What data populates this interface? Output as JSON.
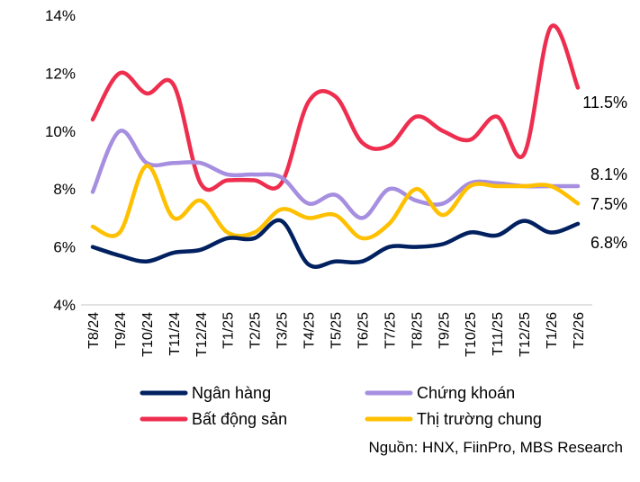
{
  "chart_data": {
    "type": "line",
    "categories": [
      "T8/24",
      "T9/24",
      "T10/24",
      "T11/24",
      "T12/24",
      "T1/25",
      "T2/25",
      "T3/25",
      "T4/25",
      "T5/25",
      "T6/25",
      "T7/25",
      "T8/25",
      "T9/25",
      "T10/25",
      "T11/25",
      "T12/25",
      "T1/26",
      "T2/26"
    ],
    "ylim": [
      4,
      14
    ],
    "yticks": [
      4,
      6,
      8,
      10,
      12,
      14
    ],
    "ytick_format": "%",
    "grid": false,
    "legend_placement": "bottom",
    "series": [
      {
        "name": "Ngân hàng",
        "color": "#002060",
        "end_label": "6.8%",
        "values": [
          6.0,
          5.7,
          5.5,
          5.8,
          5.9,
          6.3,
          6.3,
          6.9,
          5.4,
          5.5,
          5.5,
          6.0,
          6.0,
          6.1,
          6.5,
          6.4,
          6.9,
          6.5,
          6.8
        ]
      },
      {
        "name": "Chứng khoán",
        "color": "#A68EE0",
        "end_label": "8.1%",
        "values": [
          7.9,
          10.0,
          8.9,
          8.9,
          8.9,
          8.5,
          8.5,
          8.4,
          7.5,
          7.8,
          7.0,
          8.0,
          7.6,
          7.5,
          8.2,
          8.2,
          8.1,
          8.1,
          8.1
        ]
      },
      {
        "name": "Bất động sản",
        "color": "#EE2E4F",
        "end_label": "11.5%",
        "values": [
          10.4,
          12.0,
          11.3,
          11.6,
          8.2,
          8.3,
          8.3,
          8.2,
          11.0,
          11.2,
          9.6,
          9.5,
          10.5,
          10.0,
          9.7,
          10.5,
          9.2,
          13.6,
          11.5
        ]
      },
      {
        "name": "Thị trường chung",
        "color": "#FFC000",
        "end_label": "7.5%",
        "values": [
          6.7,
          6.5,
          8.8,
          7.0,
          7.6,
          6.5,
          6.5,
          7.3,
          7.0,
          7.1,
          6.3,
          6.8,
          8.0,
          7.1,
          8.1,
          8.1,
          8.1,
          8.1,
          7.5
        ]
      }
    ],
    "source": "Nguồn: HNX, FiinPro, MBS Research"
  }
}
